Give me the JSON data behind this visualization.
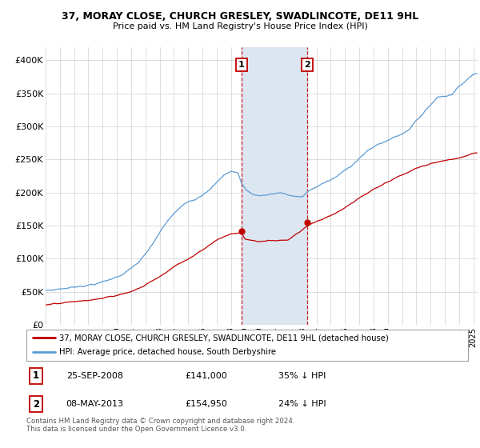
{
  "title_line1": "37, MORAY CLOSE, CHURCH GRESLEY, SWADLINCOTE, DE11 9HL",
  "title_line2": "Price paid vs. HM Land Registry's House Price Index (HPI)",
  "xlim_start": 1995.0,
  "xlim_end": 2025.3,
  "ylim_min": 0,
  "ylim_max": 420000,
  "hpi_color": "#5b9bd5",
  "price_color": "#c00000",
  "sale1_x": 2008.73,
  "sale1_y": 141000,
  "sale2_x": 2013.36,
  "sale2_y": 154950,
  "sale1_date": "25-SEP-2008",
  "sale1_price": "£141,000",
  "sale1_hpi": "35% ↓ HPI",
  "sale2_date": "08-MAY-2013",
  "sale2_price": "£154,950",
  "sale2_hpi": "24% ↓ HPI",
  "legend_line1": "37, MORAY CLOSE, CHURCH GRESLEY, SWADLINCOTE, DE11 9HL (detached house)",
  "legend_line2": "HPI: Average price, detached house, South Derbyshire",
  "footnote": "Contains HM Land Registry data © Crown copyright and database right 2024.\nThis data is licensed under the Open Government Licence v3.0.",
  "background_color": "#ffffff",
  "shaded_region_color": "#dce6f1",
  "yticks": [
    0,
    50000,
    100000,
    150000,
    200000,
    250000,
    300000,
    350000,
    400000
  ],
  "ytick_labels": [
    "£0",
    "£50K",
    "£100K",
    "£150K",
    "£200K",
    "£250K",
    "£300K",
    "£350K",
    "£400K"
  ],
  "hpi_key_years": [
    1995.0,
    1995.5,
    1996.0,
    1996.5,
    1997.0,
    1997.5,
    1998.0,
    1998.5,
    1999.0,
    1999.5,
    2000.0,
    2000.5,
    2001.0,
    2001.5,
    2002.0,
    2002.5,
    2003.0,
    2003.5,
    2004.0,
    2004.5,
    2005.0,
    2005.5,
    2006.0,
    2006.5,
    2007.0,
    2007.5,
    2008.0,
    2008.5,
    2008.73,
    2009.0,
    2009.5,
    2010.0,
    2010.5,
    2011.0,
    2011.5,
    2012.0,
    2012.5,
    2013.0,
    2013.36,
    2014.0,
    2014.5,
    2015.0,
    2015.5,
    2016.0,
    2016.5,
    2017.0,
    2017.5,
    2018.0,
    2018.5,
    2019.0,
    2019.5,
    2020.0,
    2020.5,
    2021.0,
    2021.5,
    2022.0,
    2022.5,
    2023.0,
    2023.5,
    2024.0,
    2024.5,
    2025.0
  ],
  "hpi_key_vals": [
    52000,
    53000,
    55000,
    56000,
    58000,
    60000,
    62000,
    64000,
    67000,
    70000,
    75000,
    80000,
    88000,
    96000,
    108000,
    122000,
    140000,
    155000,
    168000,
    178000,
    185000,
    190000,
    198000,
    208000,
    218000,
    228000,
    235000,
    232000,
    217000,
    208000,
    200000,
    198000,
    200000,
    202000,
    204000,
    200000,
    198000,
    196000,
    204000,
    212000,
    218000,
    222000,
    228000,
    236000,
    245000,
    256000,
    265000,
    272000,
    278000,
    282000,
    288000,
    292000,
    300000,
    315000,
    325000,
    338000,
    350000,
    352000,
    355000,
    368000,
    378000,
    388000
  ],
  "price_key_years": [
    1995.0,
    1996.0,
    1997.0,
    1998.0,
    1999.0,
    2000.0,
    2001.0,
    2002.0,
    2003.0,
    2004.0,
    2005.0,
    2006.0,
    2007.0,
    2008.0,
    2008.73,
    2009.0,
    2010.0,
    2011.0,
    2012.0,
    2013.0,
    2013.36,
    2014.0,
    2015.0,
    2016.0,
    2017.0,
    2018.0,
    2019.0,
    2020.0,
    2021.0,
    2022.0,
    2023.0,
    2024.0,
    2025.0
  ],
  "price_key_vals": [
    30000,
    31000,
    33000,
    35000,
    38000,
    42000,
    48000,
    58000,
    72000,
    88000,
    100000,
    115000,
    130000,
    140000,
    141000,
    132000,
    128000,
    130000,
    132000,
    148000,
    154950,
    162000,
    170000,
    182000,
    196000,
    208000,
    218000,
    228000,
    238000,
    245000,
    250000,
    255000,
    262000
  ]
}
